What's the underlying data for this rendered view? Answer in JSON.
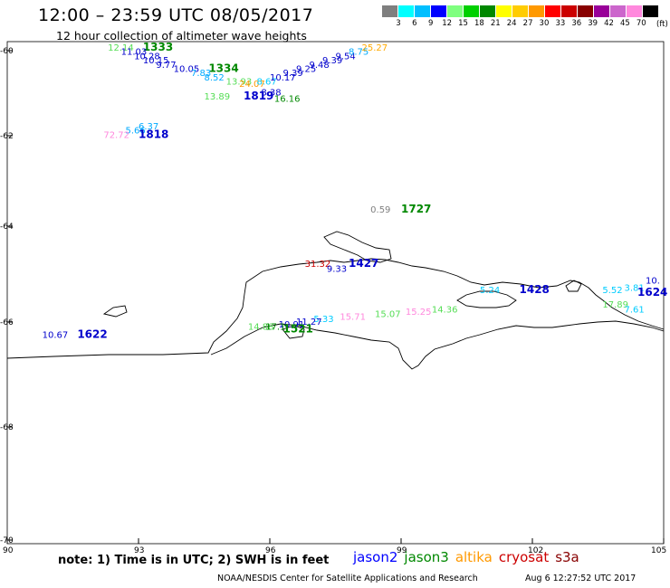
{
  "header": {
    "title": "12:00 – 23:59 UTC 08/05/2017",
    "subtitle": "12 hour collection of altimeter wave heights"
  },
  "legend": {
    "unit": "(ft)",
    "colors": [
      "#7f7f7f",
      "#00ffff",
      "#00bfff",
      "#0000ff",
      "#7fff7f",
      "#00d000",
      "#008800",
      "#ffff00",
      "#ffcc00",
      "#ff9900",
      "#ff0000",
      "#cc0000",
      "#880000",
      "#990099",
      "#cc66cc",
      "#ff88dd",
      "#000000"
    ],
    "labels": [
      "3",
      "6",
      "9",
      "12",
      "15",
      "18",
      "21",
      "24",
      "27",
      "30",
      "33",
      "36",
      "39",
      "42",
      "45",
      "70"
    ]
  },
  "axes": {
    "lat_labels": [
      "-60",
      "-62",
      "-64",
      "-66",
      "-68",
      "-70"
    ],
    "lon_labels": [
      "90",
      "93",
      "96",
      "99",
      "102",
      "105"
    ]
  },
  "observations": [
    {
      "text": "12.14",
      "color": "#55dd55",
      "lon": 92.3,
      "lat": -60.0
    },
    {
      "text": "1333",
      "color": "#008800",
      "lon": 93.1,
      "lat": -60.0,
      "time": true
    },
    {
      "text": "11.03",
      "color": "#0000cc",
      "lon": 92.6,
      "lat": -60.1
    },
    {
      "text": "10.28",
      "color": "#0000cc",
      "lon": 92.9,
      "lat": -60.2
    },
    {
      "text": "10.15",
      "color": "#0000cc",
      "lon": 93.1,
      "lat": -60.3
    },
    {
      "text": "9.77",
      "color": "#0000cc",
      "lon": 93.4,
      "lat": -60.4
    },
    {
      "text": "10.05",
      "color": "#0000cc",
      "lon": 93.8,
      "lat": -60.5
    },
    {
      "text": "1334",
      "color": "#008800",
      "lon": 94.6,
      "lat": -60.5,
      "time": true
    },
    {
      "text": "7.83",
      "color": "#00aaff",
      "lon": 94.2,
      "lat": -60.6
    },
    {
      "text": "8.52",
      "color": "#00aaff",
      "lon": 94.5,
      "lat": -60.7
    },
    {
      "text": "13.93",
      "color": "#55dd55",
      "lon": 95.0,
      "lat": -60.8
    },
    {
      "text": "24.07",
      "color": "#ff9900",
      "lon": 95.3,
      "lat": -60.85
    },
    {
      "text": "8.67",
      "color": "#00ccff",
      "lon": 95.7,
      "lat": -60.8
    },
    {
      "text": "10.17",
      "color": "#0000cc",
      "lon": 96.0,
      "lat": -60.7
    },
    {
      "text": "9.39",
      "color": "#0000cc",
      "lon": 96.3,
      "lat": -60.6
    },
    {
      "text": "9.25",
      "color": "#0000cc",
      "lon": 96.6,
      "lat": -60.5
    },
    {
      "text": "9.48",
      "color": "#0000cc",
      "lon": 96.9,
      "lat": -60.4
    },
    {
      "text": "9.39",
      "color": "#0000cc",
      "lon": 97.2,
      "lat": -60.3
    },
    {
      "text": "9.54",
      "color": "#0000cc",
      "lon": 97.5,
      "lat": -60.2
    },
    {
      "text": "8.75",
      "color": "#00aaff",
      "lon": 97.8,
      "lat": -60.1
    },
    {
      "text": "25.27",
      "color": "#ffaa00",
      "lon": 98.1,
      "lat": -60.0
    },
    {
      "text": "13.89",
      "color": "#55dd55",
      "lon": 94.5,
      "lat": -61.15
    },
    {
      "text": "1819",
      "color": "#0000cc",
      "lon": 95.4,
      "lat": -61.15,
      "time": true
    },
    {
      "text": "8.38",
      "color": "#0000cc",
      "lon": 95.8,
      "lat": -61.05
    },
    {
      "text": "16.16",
      "color": "#008800",
      "lon": 96.1,
      "lat": -61.2
    },
    {
      "text": "6.37",
      "color": "#00aaff",
      "lon": 93.0,
      "lat": -61.85
    },
    {
      "text": "5.66",
      "color": "#00aaff",
      "lon": 92.7,
      "lat": -61.95
    },
    {
      "text": "72.72",
      "color": "#ff88dd",
      "lon": 92.2,
      "lat": -62.05
    },
    {
      "text": "1818",
      "color": "#0000cc",
      "lon": 93.0,
      "lat": -62.05,
      "time": true
    },
    {
      "text": "0.59",
      "color": "#7f7f7f",
      "lon": 98.3,
      "lat": -63.7
    },
    {
      "text": "1727",
      "color": "#008800",
      "lon": 99.0,
      "lat": -63.7,
      "time": true
    },
    {
      "text": "31.32",
      "color": "#cc0000",
      "lon": 96.8,
      "lat": -64.85
    },
    {
      "text": "9.33",
      "color": "#0000cc",
      "lon": 97.3,
      "lat": -64.95
    },
    {
      "text": "1427",
      "color": "#0000cc",
      "lon": 97.8,
      "lat": -64.85,
      "time": true
    },
    {
      "text": "5.24",
      "color": "#00ccff",
      "lon": 100.8,
      "lat": -65.4
    },
    {
      "text": "1428",
      "color": "#0000cc",
      "lon": 101.7,
      "lat": -65.4,
      "time": true
    },
    {
      "text": "5.52",
      "color": "#00ccff",
      "lon": 103.6,
      "lat": -65.4
    },
    {
      "text": "3.81",
      "color": "#00ccff",
      "lon": 104.1,
      "lat": -65.35
    },
    {
      "text": "1624",
      "color": "#0000cc",
      "lon": 104.4,
      "lat": -65.45,
      "time": true
    },
    {
      "text": "10.",
      "color": "#0000cc",
      "lon": 104.8,
      "lat": -65.2
    },
    {
      "text": "17.89",
      "color": "#55dd55",
      "lon": 103.6,
      "lat": -65.7
    },
    {
      "text": "7.61",
      "color": "#00ccff",
      "lon": 104.1,
      "lat": -65.8
    },
    {
      "text": "15.07",
      "color": "#55dd55",
      "lon": 98.4,
      "lat": -65.9
    },
    {
      "text": "15.25",
      "color": "#ff88dd",
      "lon": 99.1,
      "lat": -65.85
    },
    {
      "text": "14.36",
      "color": "#55dd55",
      "lon": 99.7,
      "lat": -65.8
    },
    {
      "text": "5.33",
      "color": "#00ccff",
      "lon": 97.0,
      "lat": -66.0
    },
    {
      "text": "15.71",
      "color": "#ff88dd",
      "lon": 97.6,
      "lat": -65.95
    },
    {
      "text": "11.27",
      "color": "#0000cc",
      "lon": 96.6,
      "lat": -66.05
    },
    {
      "text": "10.91",
      "color": "#0000cc",
      "lon": 96.2,
      "lat": -66.1
    },
    {
      "text": "14.88",
      "color": "#55dd55",
      "lon": 95.5,
      "lat": -66.15
    },
    {
      "text": "17.1",
      "color": "#008800",
      "lon": 95.9,
      "lat": -66.15
    },
    {
      "text": "1521",
      "color": "#008800",
      "lon": 96.3,
      "lat": -66.2,
      "time": true
    },
    {
      "text": "10.67",
      "color": "#0000cc",
      "lon": 90.8,
      "lat": -66.3
    },
    {
      "text": "1622",
      "color": "#0000cc",
      "lon": 91.6,
      "lat": -66.3,
      "time": true
    }
  ],
  "footer": {
    "note": "note:  1) Time is in UTC;  2) SWH is in feet",
    "satellites": [
      {
        "name": "jason2",
        "color": "#0000ff"
      },
      {
        "name": "jason3",
        "color": "#008800"
      },
      {
        "name": "altika",
        "color": "#ff9900"
      },
      {
        "name": "cryosat",
        "color": "#cc0000"
      },
      {
        "name": "s3a",
        "color": "#880000"
      }
    ],
    "credit": "NOAA/NESDIS Center for Satellite Applications and Research",
    "timestamp": "Aug  6 12:27:52 UTC 2017"
  }
}
